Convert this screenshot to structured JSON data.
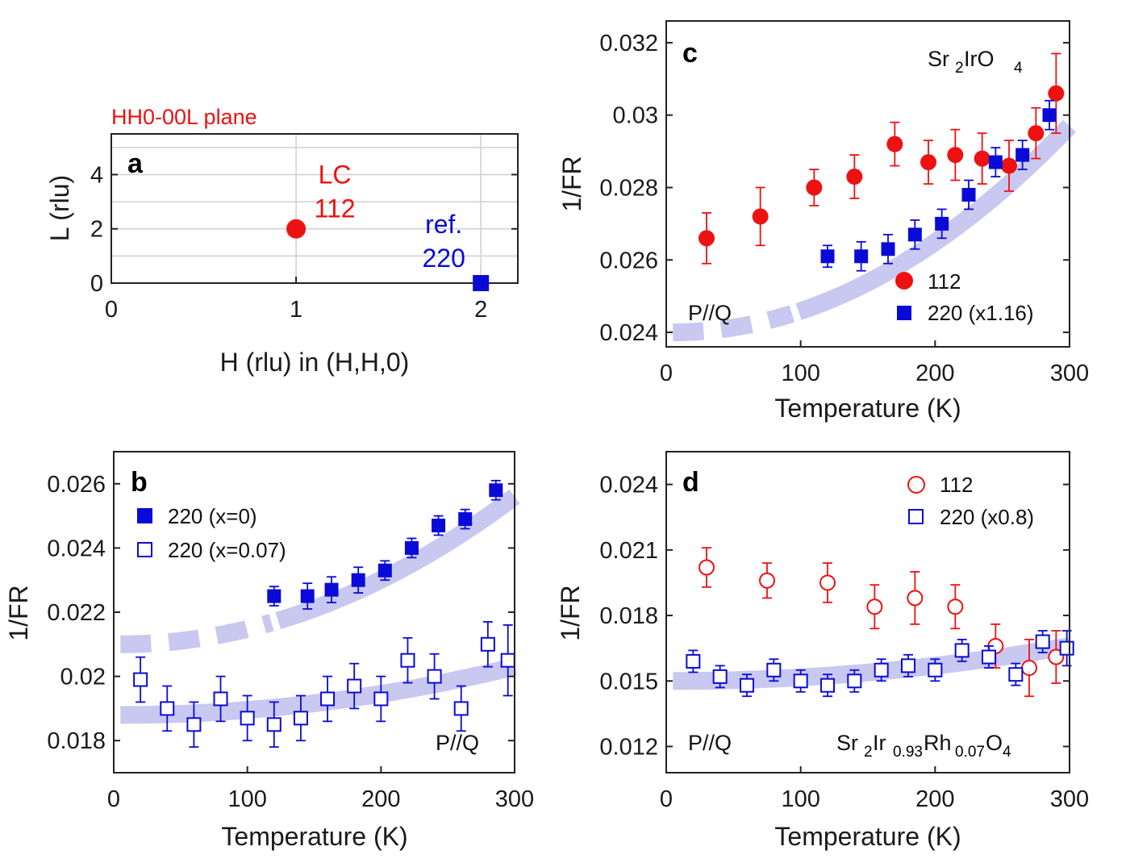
{
  "colors": {
    "red": "#ee1111",
    "blue": "#0a0ad8",
    "band": "#c8c8f0",
    "grid": "#d0d0d0"
  },
  "chart_data": [
    {
      "panel": "a",
      "type": "scatter",
      "title": "HH0-00L plane",
      "xlabel": "H (rlu) in (H,H,0)",
      "ylabel": "L (rlu)",
      "xlim": [
        0,
        2.2
      ],
      "ylim": [
        0,
        5.5
      ],
      "xticks": [
        "0",
        "1",
        "2"
      ],
      "yticks": [
        "0",
        "2",
        "4"
      ],
      "points": [
        {
          "h": 1,
          "l": 2,
          "marker": "circle",
          "color": "red",
          "label_top": "LC",
          "label_bottom": "112"
        },
        {
          "h": 2,
          "l": 0,
          "marker": "square",
          "color": "blue",
          "label_top": "ref.",
          "label_bottom": "220"
        }
      ]
    },
    {
      "panel": "b",
      "type": "scatter",
      "xlabel": "Temperature (K)",
      "ylabel": "1/FR",
      "xlim": [
        0,
        300
      ],
      "ylim": [
        0.017,
        0.027
      ],
      "xticks": [
        "0",
        "100",
        "200",
        "300"
      ],
      "yticks": [
        "0.018",
        "0.02",
        "0.022",
        "0.024",
        "0.026"
      ],
      "annotation": "P//Q",
      "series": [
        {
          "name": "220 (x=0)",
          "marker": "square-filled",
          "color": "blue",
          "x": [
            120,
            145,
            163,
            183,
            203,
            223,
            243,
            263,
            286
          ],
          "y": [
            0.0225,
            0.0225,
            0.0227,
            0.023,
            0.0233,
            0.024,
            0.0247,
            0.0249,
            0.0258
          ],
          "err": [
            0.0003,
            0.0004,
            0.0004,
            0.0004,
            0.0003,
            0.0003,
            0.0003,
            0.0003,
            0.0003
          ]
        },
        {
          "name": "220 (x=0.07)",
          "marker": "square-open",
          "color": "blue",
          "x": [
            20,
            40,
            60,
            80,
            100,
            120,
            140,
            160,
            180,
            200,
            220,
            240,
            260,
            280,
            295
          ],
          "y": [
            0.0199,
            0.019,
            0.0185,
            0.0193,
            0.0187,
            0.0185,
            0.0187,
            0.0193,
            0.0197,
            0.0193,
            0.0205,
            0.02,
            0.019,
            0.021,
            0.0205
          ],
          "err": [
            0.0007,
            0.0007,
            0.0007,
            0.0007,
            0.0007,
            0.0007,
            0.0007,
            0.0007,
            0.0007,
            0.0007,
            0.0007,
            0.0007,
            0.0007,
            0.0007,
            0.0011
          ]
        }
      ],
      "bands": [
        {
          "x0": 5,
          "x1": 300,
          "y0": 0.021,
          "y1": 0.0256,
          "solid_from": 120
        },
        {
          "x0": 5,
          "x1": 300,
          "y0": 0.0188,
          "y1": 0.0203,
          "solid_from": 5
        }
      ]
    },
    {
      "panel": "c",
      "type": "scatter",
      "title": "Sr2IrO4",
      "xlabel": "Temperature (K)",
      "ylabel": "1/FR",
      "xlim": [
        0,
        300
      ],
      "ylim": [
        0.0236,
        0.0326
      ],
      "xticks": [
        "0",
        "100",
        "200",
        "300"
      ],
      "yticks": [
        "0.024",
        "0.026",
        "0.028",
        "0.03",
        "0.032"
      ],
      "annotation": "P//Q",
      "series": [
        {
          "name": "112",
          "marker": "circle-filled",
          "color": "red",
          "x": [
            30,
            70,
            110,
            140,
            170,
            195,
            215,
            235,
            255,
            275,
            290
          ],
          "y": [
            0.0266,
            0.0272,
            0.028,
            0.0283,
            0.0292,
            0.0287,
            0.0289,
            0.0288,
            0.0286,
            0.0295,
            0.0306
          ],
          "err": [
            0.0007,
            0.0008,
            0.0005,
            0.0006,
            0.0006,
            0.0006,
            0.0007,
            0.0007,
            0.0007,
            0.0007,
            0.0011
          ]
        },
        {
          "name": "220 (x1.16)",
          "marker": "square-filled",
          "color": "blue",
          "x": [
            120,
            145,
            165,
            185,
            205,
            225,
            245,
            265,
            285
          ],
          "y": [
            0.0261,
            0.0261,
            0.0263,
            0.0267,
            0.027,
            0.0278,
            0.0287,
            0.0289,
            0.03
          ],
          "err": [
            0.0003,
            0.0004,
            0.0004,
            0.0004,
            0.0004,
            0.0004,
            0.0004,
            0.0004,
            0.0004
          ]
        }
      ],
      "bands": [
        {
          "x0": 5,
          "x1": 300,
          "y0": 0.024,
          "y1": 0.0297,
          "solid_from": 95
        }
      ]
    },
    {
      "panel": "d",
      "type": "scatter",
      "title": "Sr2Ir0.93Rh0.07O4",
      "xlabel": "Temperature (K)",
      "ylabel": "1/FR",
      "xlim": [
        0,
        300
      ],
      "ylim": [
        0.0108,
        0.0255
      ],
      "xticks": [
        "0",
        "100",
        "200",
        "300"
      ],
      "yticks": [
        "0.012",
        "0.015",
        "0.018",
        "0.021",
        "0.024"
      ],
      "annotation": "P//Q",
      "series": [
        {
          "name": "112",
          "marker": "circle-open",
          "color": "red",
          "x": [
            30,
            75,
            120,
            155,
            185,
            215,
            245,
            270,
            290
          ],
          "y": [
            0.0202,
            0.0196,
            0.0195,
            0.0184,
            0.0188,
            0.0184,
            0.0166,
            0.0156,
            0.0161
          ],
          "err": [
            0.0009,
            0.0008,
            0.0009,
            0.001,
            0.0012,
            0.001,
            0.001,
            0.0013,
            0.0012
          ]
        },
        {
          "name": "220 (x0.8)",
          "marker": "square-open",
          "color": "blue",
          "x": [
            20,
            40,
            60,
            80,
            100,
            120,
            140,
            160,
            180,
            200,
            220,
            240,
            260,
            280,
            298
          ],
          "y": [
            0.0159,
            0.0152,
            0.0148,
            0.0155,
            0.015,
            0.0148,
            0.015,
            0.0155,
            0.0157,
            0.0155,
            0.0164,
            0.0161,
            0.0153,
            0.0168,
            0.0165
          ],
          "err": [
            0.0005,
            0.0005,
            0.0005,
            0.0005,
            0.0005,
            0.0005,
            0.0005,
            0.0005,
            0.0005,
            0.0005,
            0.0005,
            0.0005,
            0.0005,
            0.0005,
            0.0008
          ]
        }
      ],
      "bands": [
        {
          "x0": 5,
          "x1": 300,
          "y0": 0.015,
          "y1": 0.0166,
          "solid_from": 5
        }
      ]
    }
  ]
}
